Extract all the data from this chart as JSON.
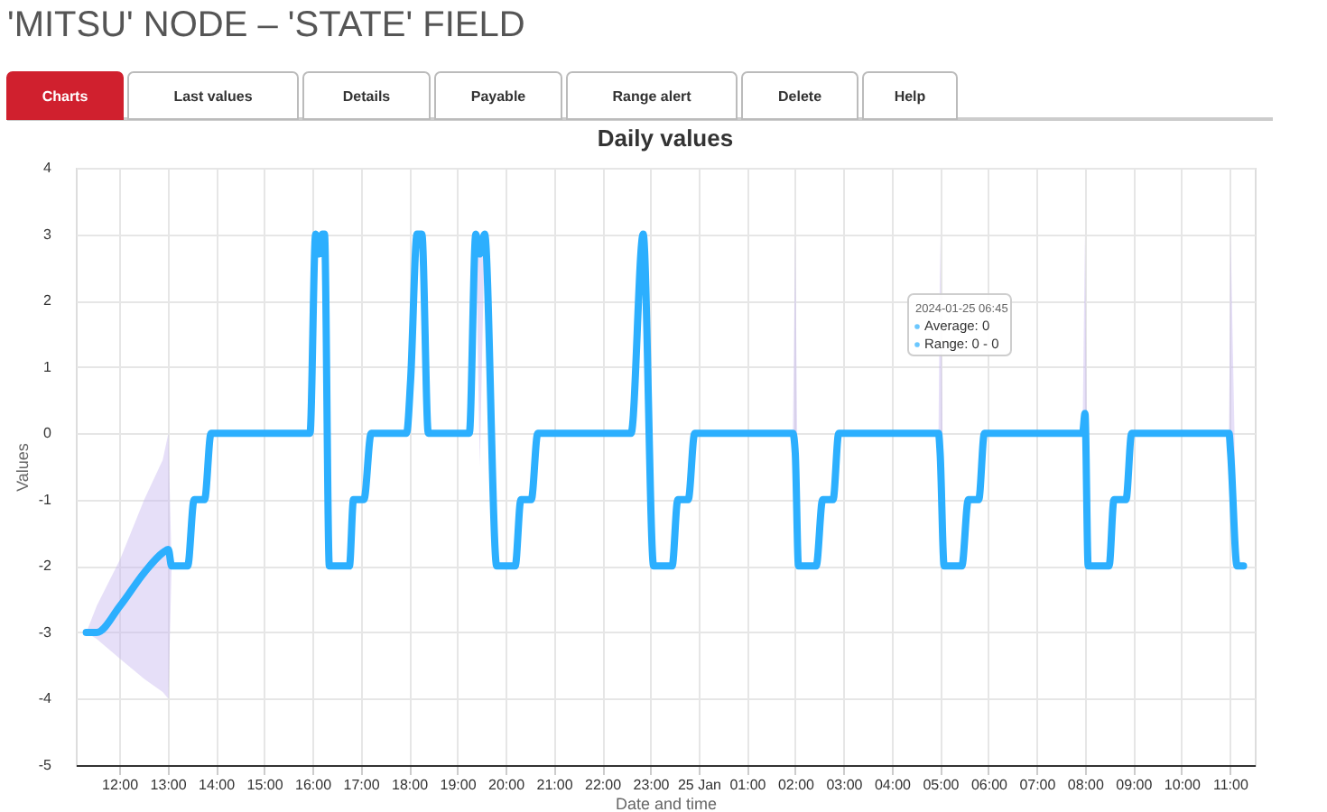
{
  "chart_data": {
    "type": "line",
    "title": "'MITSU' NODE – 'STATE' FIELD",
    "subtitle": "Daily values",
    "xlabel": "Date and time",
    "ylabel": "Values",
    "annotations": [
      "Charts",
      "Last values",
      "Details",
      "Payable",
      "Range alert",
      "Delete",
      "Help",
      "2024-01-25 06:45",
      "Average: 0",
      "Range: 0 - 0"
    ],
    "xlim": [
      "2024-01-24T11:06",
      "2024-01-25T11:31"
    ],
    "ylim": [
      -5,
      4
    ],
    "yticks": [
      -5,
      -4,
      -3,
      -2,
      -1,
      0,
      1,
      2,
      3,
      4
    ],
    "xticks": [
      {
        "value": "2024-01-24T12:00",
        "label": "12:00"
      },
      {
        "value": "2024-01-24T13:00",
        "label": "13:00"
      },
      {
        "value": "2024-01-24T14:00",
        "label": "14:00"
      },
      {
        "value": "2024-01-24T15:00",
        "label": "15:00"
      },
      {
        "value": "2024-01-24T16:00",
        "label": "16:00"
      },
      {
        "value": "2024-01-24T17:00",
        "label": "17:00"
      },
      {
        "value": "2024-01-24T18:00",
        "label": "18:00"
      },
      {
        "value": "2024-01-24T19:00",
        "label": "19:00"
      },
      {
        "value": "2024-01-24T20:00",
        "label": "20:00"
      },
      {
        "value": "2024-01-24T21:00",
        "label": "21:00"
      },
      {
        "value": "2024-01-24T22:00",
        "label": "22:00"
      },
      {
        "value": "2024-01-24T23:00",
        "label": "23:00"
      },
      {
        "value": "2024-01-25T00:00",
        "label": "25 Jan"
      },
      {
        "value": "2024-01-25T01:00",
        "label": "01:00"
      },
      {
        "value": "2024-01-25T02:00",
        "label": "02:00"
      },
      {
        "value": "2024-01-25T03:00",
        "label": "03:00"
      },
      {
        "value": "2024-01-25T04:00",
        "label": "04:00"
      },
      {
        "value": "2024-01-25T05:00",
        "label": "05:00"
      },
      {
        "value": "2024-01-25T06:00",
        "label": "06:00"
      },
      {
        "value": "2024-01-25T07:00",
        "label": "07:00"
      },
      {
        "value": "2024-01-25T08:00",
        "label": "08:00"
      },
      {
        "value": "2024-01-25T09:00",
        "label": "09:00"
      },
      {
        "value": "2024-01-25T10:00",
        "label": "10:00"
      },
      {
        "value": "2024-01-25T11:00",
        "label": "11:00"
      }
    ],
    "grid": true,
    "marker": "none",
    "line_style": "solid",
    "series": [
      {
        "color": "#2caffe",
        "x": [
          "2024-01-24T11:19",
          "2024-01-24T11:32",
          "2024-01-24T12:01",
          "2024-01-24T12:31",
          "2024-01-24T12:54",
          "2024-01-24T13:01",
          "2024-01-24T13:05",
          "2024-01-24T13:25",
          "2024-01-24T13:33",
          "2024-01-24T13:46",
          "2024-01-24T13:54",
          "2024-01-24T15:57",
          "2024-01-24T16:04",
          "2024-01-24T16:08",
          "2024-01-24T16:12",
          "2024-01-24T16:15",
          "2024-01-24T16:21",
          "2024-01-24T16:46",
          "2024-01-24T16:51",
          "2024-01-24T17:04",
          "2024-01-24T17:13",
          "2024-01-24T17:57",
          "2024-01-24T18:02",
          "2024-01-24T18:10",
          "2024-01-24T18:16",
          "2024-01-24T18:24",
          "2024-01-24T19:15",
          "2024-01-24T19:23",
          "2024-01-24T19:28",
          "2024-01-24T19:34",
          "2024-01-24T19:49",
          "2024-01-24T20:12",
          "2024-01-24T20:19",
          "2024-01-24T20:32",
          "2024-01-24T20:40",
          "2024-01-24T22:36",
          "2024-01-24T22:51",
          "2024-01-24T23:04",
          "2024-01-24T23:27",
          "2024-01-24T23:34",
          "2024-01-24T23:47",
          "2024-01-24T23:55",
          "2024-01-25T01:57",
          "2024-01-25T02:00",
          "2024-01-25T02:04",
          "2024-01-25T02:26",
          "2024-01-25T02:34",
          "2024-01-25T02:47",
          "2024-01-25T02:54",
          "2024-01-25T04:58",
          "2024-01-25T05:00",
          "2024-01-25T05:05",
          "2024-01-25T05:27",
          "2024-01-25T05:35",
          "2024-01-25T05:48",
          "2024-01-25T05:55",
          "2024-01-25T07:57",
          "2024-01-25T08:00",
          "2024-01-25T08:04",
          "2024-01-25T08:30",
          "2024-01-25T08:36",
          "2024-01-25T08:51",
          "2024-01-25T08:58",
          "2024-01-25T10:59",
          "2024-01-25T11:01",
          "2024-01-25T11:09",
          "2024-01-25T11:17"
        ],
        "values": [
          -3,
          -3,
          -2.6,
          -2.1,
          -1.8,
          -1.75,
          -2,
          -2,
          -1,
          -1,
          0,
          0,
          3,
          2.7,
          3,
          3,
          -2,
          -2,
          -1,
          -1,
          0,
          0,
          0.8,
          3,
          3,
          0,
          0,
          3,
          2.7,
          3,
          -2,
          -2,
          -1,
          -1,
          0,
          0,
          3,
          -2,
          -2,
          -1,
          -1,
          0,
          0,
          -0.3,
          -2,
          -2,
          -1,
          -1,
          0,
          0,
          -0.3,
          -2,
          -2,
          -1,
          -1,
          0,
          0,
          0.3,
          -2,
          -2,
          -1,
          -1,
          0,
          0,
          -0.3,
          -2,
          -2
        ],
        "lower": [
          -3,
          -3.1,
          -3.4,
          -3.7,
          -3.9,
          -4,
          -2,
          -2,
          -1,
          -1,
          0,
          0,
          3,
          2.7,
          3,
          3,
          -2,
          -2,
          -1,
          -1,
          0,
          0,
          0.8,
          3,
          3,
          0,
          0,
          3,
          -0.5,
          3,
          -2,
          -2,
          -1,
          -1,
          0,
          0,
          3,
          -2,
          -2,
          -1,
          -1,
          0,
          0,
          -0.3,
          -2,
          -2,
          -1,
          -1,
          0,
          0,
          -0.3,
          -2,
          -2,
          -1,
          -1,
          0,
          0,
          0.3,
          -2,
          -2,
          -1,
          -1,
          0,
          0,
          -0.3,
          -2,
          -2
        ],
        "upper": [
          -3,
          -2.6,
          -1.9,
          -1.0,
          -0.4,
          0,
          -2,
          -2,
          -1,
          -1,
          0,
          0,
          3,
          2.7,
          3,
          3,
          -2,
          -2,
          -1,
          -1,
          0,
          0,
          0.8,
          3,
          3,
          0,
          0,
          3,
          3,
          3,
          -2,
          -2,
          -1,
          -1,
          0,
          0,
          3,
          -2,
          -2,
          -1,
          -1,
          0,
          0,
          3,
          -2,
          -2,
          -1,
          -1,
          0,
          0,
          3,
          -2,
          -2,
          -1,
          -1,
          0,
          0,
          3,
          -2,
          -2,
          -1,
          -1,
          0,
          0,
          3,
          -2,
          -2
        ]
      }
    ]
  }
}
